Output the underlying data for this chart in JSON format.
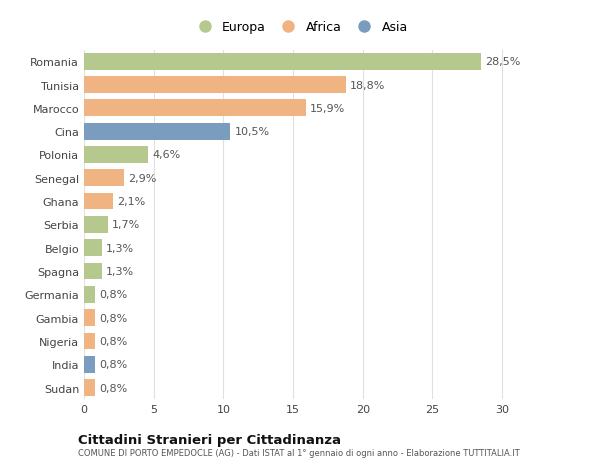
{
  "countries": [
    "Romania",
    "Tunisia",
    "Marocco",
    "Cina",
    "Polonia",
    "Senegal",
    "Ghana",
    "Serbia",
    "Belgio",
    "Spagna",
    "Germania",
    "Gambia",
    "Nigeria",
    "India",
    "Sudan"
  ],
  "values": [
    28.5,
    18.8,
    15.9,
    10.5,
    4.6,
    2.9,
    2.1,
    1.7,
    1.3,
    1.3,
    0.8,
    0.8,
    0.8,
    0.8,
    0.8
  ],
  "labels": [
    "28,5%",
    "18,8%",
    "15,9%",
    "10,5%",
    "4,6%",
    "2,9%",
    "2,1%",
    "1,7%",
    "1,3%",
    "1,3%",
    "0,8%",
    "0,8%",
    "0,8%",
    "0,8%",
    "0,8%"
  ],
  "continents": [
    "Europa",
    "Africa",
    "Africa",
    "Asia",
    "Europa",
    "Africa",
    "Africa",
    "Europa",
    "Europa",
    "Europa",
    "Europa",
    "Africa",
    "Africa",
    "Asia",
    "Africa"
  ],
  "colors": {
    "Europa": "#b5c98e",
    "Africa": "#f0b482",
    "Asia": "#7a9cbf"
  },
  "xlim": [
    0,
    31
  ],
  "xticks": [
    0,
    5,
    10,
    15,
    20,
    25,
    30
  ],
  "background_color": "#ffffff",
  "grid_color": "#e0e0e0",
  "title_main": "Cittadini Stranieri per Cittadinanza",
  "title_sub": "COMUNE DI PORTO EMPEDOCLE (AG) - Dati ISTAT al 1° gennaio di ogni anno - Elaborazione TUTTITALIA.IT",
  "bar_height": 0.72,
  "label_fontsize": 8.0,
  "tick_fontsize": 8.0,
  "legend_order": [
    "Europa",
    "Africa",
    "Asia"
  ]
}
